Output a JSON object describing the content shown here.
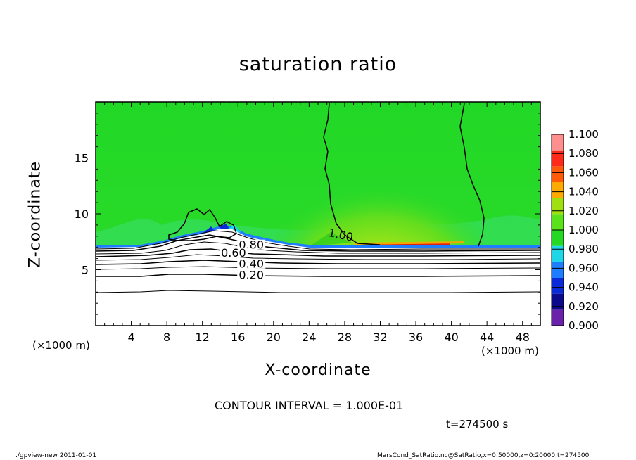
{
  "chart_data": {
    "type": "heatmap",
    "title": "saturation ratio",
    "xlabel": "X-coordinate",
    "ylabel": "Z-coordinate",
    "x_unit_left": "(×1000 m)",
    "x_unit_right": "(×1000 m)",
    "xlim": [
      0,
      50
    ],
    "ylim": [
      0,
      20
    ],
    "x_ticks": [
      4,
      8,
      12,
      16,
      20,
      24,
      28,
      32,
      36,
      40,
      44,
      48
    ],
    "x_tick_labels": [
      "4",
      "8",
      "12",
      "16",
      "20",
      "24",
      "28",
      "32",
      "36",
      "40",
      "44",
      "48"
    ],
    "y_ticks": [
      5,
      10,
      15
    ],
    "y_tick_labels": [
      "5",
      "10",
      "15"
    ],
    "colorbar": {
      "levels": [
        0.9,
        0.92,
        0.94,
        0.96,
        0.98,
        1.0,
        1.02,
        1.04,
        1.06,
        1.08,
        1.1
      ],
      "labels": [
        "0.900",
        "0.920",
        "0.940",
        "0.960",
        "0.980",
        "1.000",
        "1.020",
        "1.040",
        "1.060",
        "1.080",
        "1.100"
      ],
      "colors": [
        "#6a22aa",
        "#0a0a8a",
        "#0a2ad8",
        "#1f7dff",
        "#1ed6e6",
        "#26d826",
        "#5ae21a",
        "#a0e012",
        "#ffaa00",
        "#ff5a0a",
        "#ff2a1a",
        "#ff8e8e"
      ]
    },
    "contour_labels": [
      {
        "text": "1.00",
        "x": 27.5,
        "z": 7.9
      },
      {
        "text": "0.80",
        "x": 17.5,
        "z": 7.0
      },
      {
        "text": "0.60",
        "x": 15.5,
        "z": 6.3
      },
      {
        "text": "0.40",
        "x": 17.5,
        "z": 5.3
      },
      {
        "text": "0.20",
        "x": 17.5,
        "z": 4.3
      }
    ],
    "contour_interval": "CONTOUR INTERVAL = 1.000E-01",
    "time": "t=274500 s"
  },
  "footer": {
    "left": "./gpview-new  2011-01-01",
    "right": "MarsCond_SatRatio.nc@SatRatio,x=0:50000,z=0:20000,t=274500"
  }
}
